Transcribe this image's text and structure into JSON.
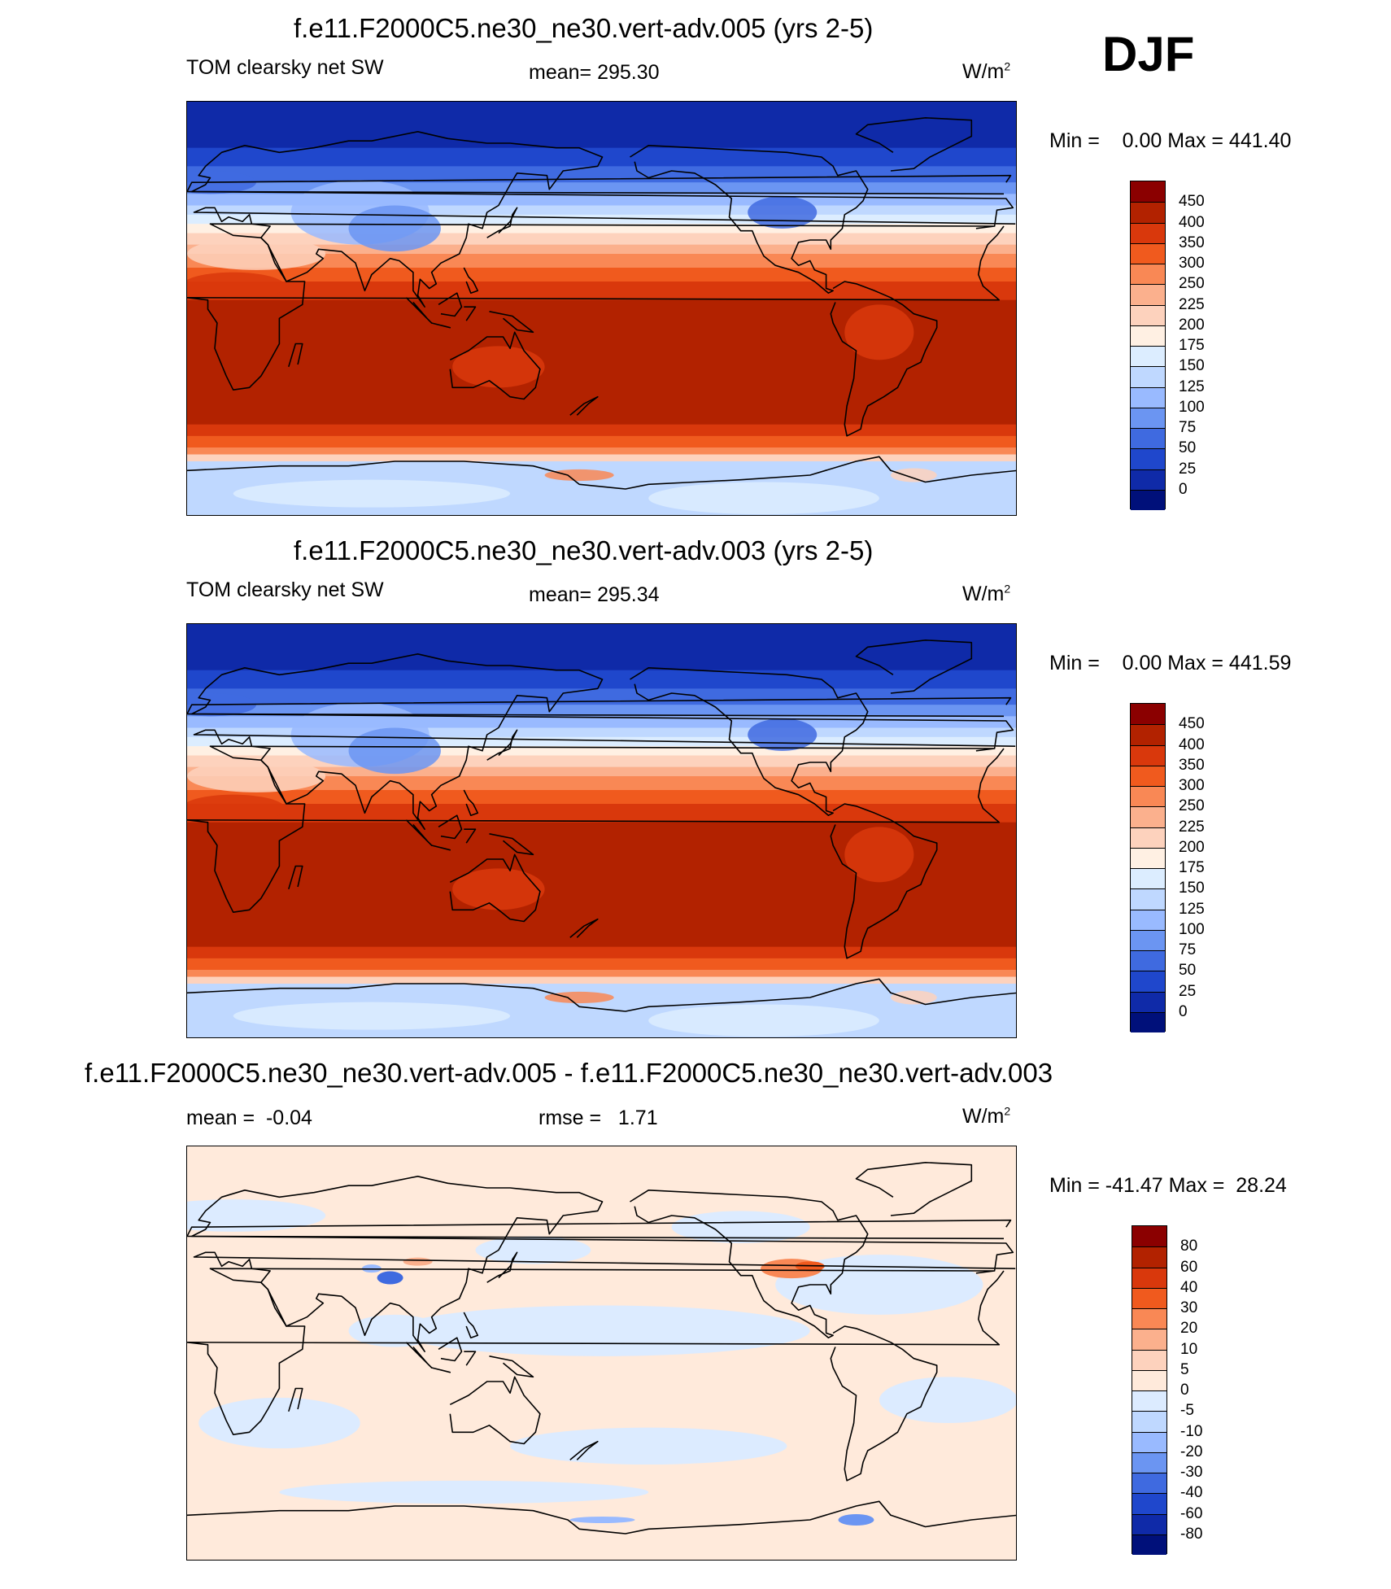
{
  "season": "DJF",
  "panels": [
    {
      "id": "top",
      "title": "f.e11.F2000C5.ne30_ne30.vert-adv.005 (yrs 2-5)",
      "left_label": "TOM clearsky net SW",
      "center_label": "mean= 295.30",
      "unit_base": "W/m",
      "unit_sup": "2",
      "minmax": "Min =    0.00 Max = 441.40",
      "colorbar": {
        "labels": [
          "450",
          "400",
          "350",
          "300",
          "250",
          "225",
          "200",
          "175",
          "150",
          "125",
          "100",
          "75",
          "50",
          "25",
          "0"
        ],
        "colors": [
          "#8b0000",
          "#b22200",
          "#d9380c",
          "#f05a1e",
          "#f98855",
          "#fbb08d",
          "#fdd2bd",
          "#fff0e3",
          "#dcedff",
          "#bfd8ff",
          "#99baff",
          "#6b95f2",
          "#3f6ae0",
          "#1f47cc",
          "#0f2aa8",
          "#00107a"
        ]
      },
      "field": "absolute"
    },
    {
      "id": "middle",
      "title": "f.e11.F2000C5.ne30_ne30.vert-adv.003 (yrs 2-5)",
      "left_label": "TOM clearsky net SW",
      "center_label": "mean= 295.34",
      "unit_base": "W/m",
      "unit_sup": "2",
      "minmax": "Min =    0.00 Max = 441.59",
      "colorbar": {
        "labels": [
          "450",
          "400",
          "350",
          "300",
          "250",
          "225",
          "200",
          "175",
          "150",
          "125",
          "100",
          "75",
          "50",
          "25",
          "0"
        ],
        "colors": [
          "#8b0000",
          "#b22200",
          "#d9380c",
          "#f05a1e",
          "#f98855",
          "#fbb08d",
          "#fdd2bd",
          "#fff0e3",
          "#dcedff",
          "#bfd8ff",
          "#99baff",
          "#6b95f2",
          "#3f6ae0",
          "#1f47cc",
          "#0f2aa8",
          "#00107a"
        ]
      },
      "field": "absolute"
    },
    {
      "id": "bottom",
      "title": "f.e11.F2000C5.ne30_ne30.vert-adv.005 - f.e11.F2000C5.ne30_ne30.vert-adv.003",
      "left_label": "mean =  -0.04",
      "center_label": "rmse =   1.71",
      "unit_base": "W/m",
      "unit_sup": "2",
      "minmax": "Min = -41.47 Max =  28.24",
      "colorbar": {
        "labels": [
          "80",
          "60",
          "40",
          "30",
          "20",
          "10",
          "5",
          "0",
          "-5",
          "-10",
          "-20",
          "-30",
          "-40",
          "-60",
          "-80"
        ],
        "colors": [
          "#8b0000",
          "#b22200",
          "#d9380c",
          "#f05a1e",
          "#f98855",
          "#fbb08d",
          "#fdd2bd",
          "#ffeadb",
          "#dcebff",
          "#bfd8ff",
          "#99baff",
          "#6b95f2",
          "#3f6ae0",
          "#1f47cc",
          "#0f2aa8",
          "#00107a"
        ]
      },
      "field": "difference"
    }
  ]
}
